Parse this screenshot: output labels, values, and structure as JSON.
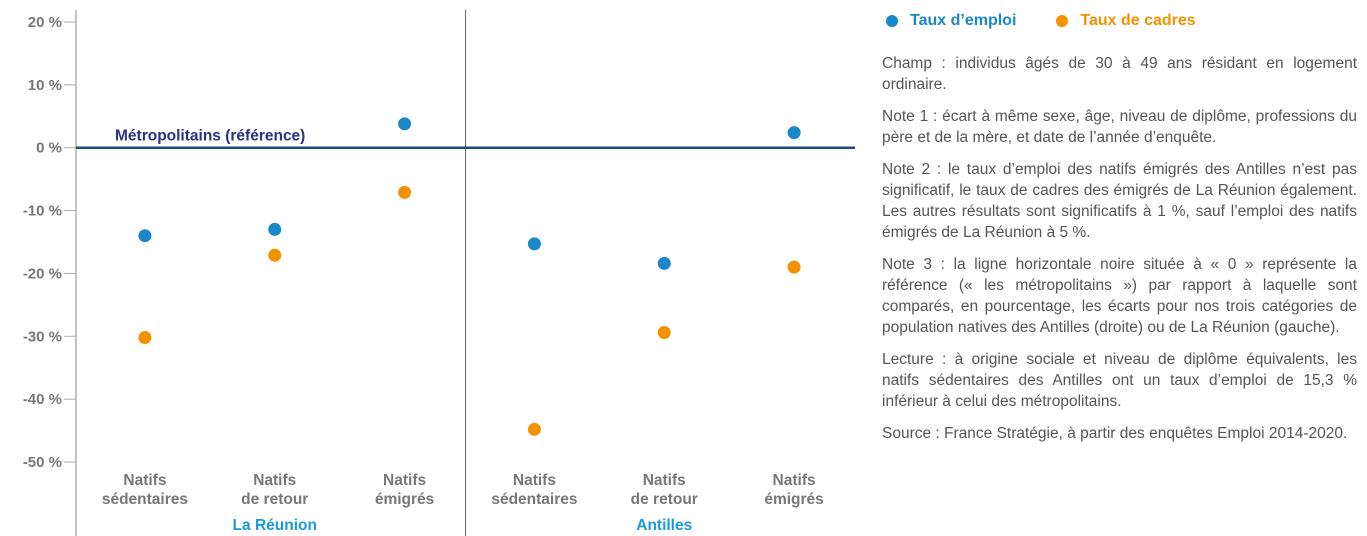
{
  "chart_data": {
    "type": "scatter",
    "categories": [
      [
        "Natifs",
        "sédentaires"
      ],
      [
        "Natifs",
        "de retour"
      ],
      [
        "Natifs",
        "émigrés"
      ],
      [
        "Natifs",
        "sédentaires"
      ],
      [
        "Natifs",
        "de retour"
      ],
      [
        "Natifs",
        "émigrés"
      ]
    ],
    "groups": [
      "La Réunion",
      "Antilles"
    ],
    "series": [
      {
        "name": "Taux d’emploi",
        "color": "#1a87c9",
        "values": [
          -14.0,
          -13.0,
          3.8,
          -15.3,
          -18.4,
          2.4
        ]
      },
      {
        "name": "Taux de cadres",
        "color": "#f39200",
        "values": [
          -30.2,
          -17.1,
          -7.1,
          -44.8,
          -29.4,
          -19.0
        ]
      }
    ],
    "reference_label": "Métropolitains (référence)",
    "ylim": [
      -50,
      20
    ],
    "yticks": [
      {
        "value": 20,
        "label": "20 %"
      },
      {
        "value": 10,
        "label": "10 %"
      },
      {
        "value": 0,
        "label": "0 %"
      },
      {
        "value": -10,
        "label": "-10 %"
      },
      {
        "value": -20,
        "label": "-20 %"
      },
      {
        "value": -30,
        "label": "-30 %"
      },
      {
        "value": -40,
        "label": "-40 %"
      },
      {
        "value": -50,
        "label": "-50 %"
      }
    ],
    "notes": [
      "Champ : individus âgés de 30 à 49 ans résidant en logement ordinaire.",
      "Note 1 : écart à même sexe, âge, niveau de diplôme, professions du père et de la mère, et date de l’année d’enquête.",
      "Note 2 : le taux d’emploi des natifs émigrés des Antilles n’est pas significatif, le taux de cadres des émigrés de La Réunion également. Les autres résultats sont significatifs à 1 %, sauf l’emploi des natifs émigrés de La Réunion à 5 %.",
      "Note 3 : la ligne horizontale noire située à « 0 » représente la référence (« les métropolitains ») par rapport à laquelle sont comparés, en pourcentage, les écarts pour nos trois catégories de population natives des Antilles (droite) ou de La Réunion (gauche).",
      "Lecture : à origine sociale et niveau de diplôme équivalents, les natifs sédentaires des Antilles ont un taux d’emploi de 15,3 % inférieur à celui des métropolitains.",
      "Source : France Stratégie, à partir des enquêtes Emploi 2014-2020."
    ]
  }
}
